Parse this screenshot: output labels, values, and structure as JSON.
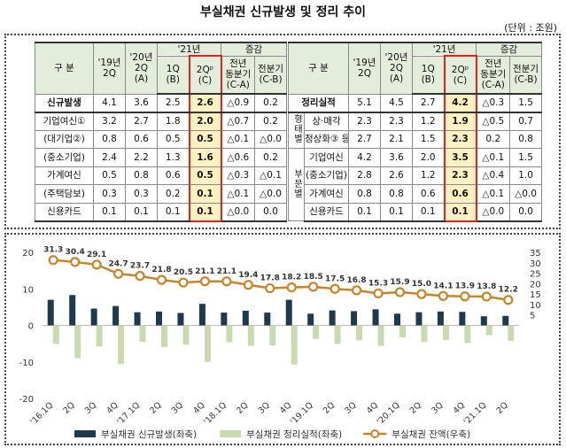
{
  "title": "부실채권 신규발생 및 정리 추이",
  "unit": "(단위 : 조원)",
  "left_table": {
    "corner": "구 분",
    "groups": [
      "'21년",
      "증감"
    ],
    "columns": [
      [
        "'19년",
        "2Q"
      ],
      [
        "'20년",
        "2Q",
        "(A)"
      ],
      [
        "1Q",
        "(B)"
      ],
      [
        "2Qᵖ",
        "(C)"
      ],
      [
        "전년",
        "동분기",
        "(C-A)"
      ],
      [
        "전분기",
        "(C-B)"
      ]
    ],
    "rows": [
      {
        "label": "신규발생",
        "values": [
          "4.1",
          "3.6",
          "2.5",
          "2.6",
          "△0.9",
          "0.2"
        ]
      },
      {
        "label": "기업여신①",
        "values": [
          "3.2",
          "2.7",
          "1.8",
          "2.0",
          "△0.7",
          "0.2"
        ]
      },
      {
        "label": "(대기업②)",
        "values": [
          "0.8",
          "0.6",
          "0.5",
          "0.5",
          "△0.1",
          "△0.0"
        ]
      },
      {
        "label": "(중소기업)",
        "values": [
          "2.4",
          "2.2",
          "1.3",
          "1.6",
          "△0.6",
          "0.2"
        ]
      },
      {
        "label": "가계여신",
        "values": [
          "0.5",
          "0.8",
          "0.6",
          "0.5",
          "△0.3",
          "△0.1"
        ]
      },
      {
        "label": "(주택담보)",
        "values": [
          "0.3",
          "0.3",
          "0.2",
          "0.1",
          "△0.1",
          "△0.0"
        ]
      },
      {
        "label": "신용카드",
        "values": [
          "0.1",
          "0.1",
          "0.1",
          "0.1",
          "△0.0",
          "0.0"
        ]
      }
    ]
  },
  "right_table": {
    "corner": "구 분",
    "groups": [
      "'21년",
      "증감"
    ],
    "columns": [
      [
        "'19년",
        "2Q"
      ],
      [
        "'20년",
        "2Q",
        "(A)"
      ],
      [
        "1Q",
        "(B)"
      ],
      [
        "2Qᵖ",
        "(C)"
      ],
      [
        "전년",
        "동분기",
        "(C-A)"
      ],
      [
        "전분기",
        "(C-B)"
      ]
    ],
    "rows": [
      {
        "label": "정리실적",
        "values": [
          "5.1",
          "4.5",
          "2.7",
          "4.2",
          "△0.3",
          "1.5"
        ]
      },
      {
        "group": "형태별",
        "rows": [
          {
            "label": "상·매각",
            "values": [
              "2.3",
              "2.3",
              "1.2",
              "1.9",
              "△0.5",
              "0.7"
            ]
          },
          {
            "label": "정상화③ 등",
            "values": [
              "2.7",
              "2.1",
              "1.5",
              "2.3",
              "0.2",
              "0.8"
            ]
          }
        ]
      },
      {
        "group": "부문별",
        "rows": [
          {
            "label": "기업여신",
            "values": [
              "4.2",
              "3.6",
              "2.0",
              "3.5",
              "△0.1",
              "1.5"
            ]
          },
          {
            "label": "(중소기업)",
            "values": [
              "2.8",
              "2.6",
              "1.2",
              "2.3",
              "△0.4",
              "1.0"
            ]
          },
          {
            "label": "가계여신",
            "values": [
              "0.8",
              "0.8",
              "0.6",
              "0.6",
              "△0.1",
              "△0.0"
            ]
          },
          {
            "label": "신용카드",
            "values": [
              "0.1",
              "0.1",
              "0.1",
              "0.1",
              "△0.0",
              "0.0"
            ]
          }
        ]
      }
    ]
  },
  "chart_data": {
    "type": "bar",
    "categories": [
      "'16.1Q",
      "2Q",
      "3Q",
      "4Q",
      "'17.1Q",
      "2Q",
      "3Q",
      "4Q",
      "'18.1Q",
      "2Q",
      "3Q",
      "4Q",
      "'19.1Q",
      "2Q",
      "3Q",
      "4Q",
      "'20.1Q",
      "2Q",
      "3Q",
      "4Q",
      "'21.1Q",
      "2Q"
    ],
    "series": [
      {
        "name": "부실채권 신규발생(좌축)",
        "type": "bar",
        "color": "#1f3a4c",
        "values": [
          7.0,
          8.3,
          4.6,
          5.3,
          3.6,
          3.8,
          3.4,
          5.9,
          3.5,
          4.0,
          3.5,
          7.0,
          3.2,
          4.1,
          3.9,
          4.4,
          3.2,
          3.6,
          3.8,
          3.7,
          2.5,
          2.6
        ]
      },
      {
        "name": "부실채권 정리실적(좌축)",
        "type": "bar",
        "color": "#c9dab1",
        "values": [
          -5.1,
          -9.0,
          -5.8,
          -10.5,
          -4.5,
          -5.9,
          -5.3,
          -10.0,
          -4.6,
          -5.6,
          -5.5,
          -10.7,
          -3.7,
          -5.1,
          -4.1,
          -5.6,
          -3.3,
          -4.5,
          -4.0,
          -4.8,
          -2.7,
          -4.2
        ]
      },
      {
        "name": "부실채권 잔액(우축)",
        "type": "line",
        "axis": "y2",
        "color": "#c5862b",
        "values": [
          31.3,
          30.4,
          29.1,
          24.7,
          23.7,
          21.8,
          20.5,
          21.1,
          21.1,
          19.4,
          17.8,
          18.2,
          18.5,
          17.5,
          16.8,
          15.3,
          15.9,
          15.0,
          14.1,
          13.9,
          13.8,
          12.2
        ],
        "value_labels": [
          "31.3",
          "30.4",
          "29.1",
          "24.7",
          "23.7",
          "21.8",
          "20.5",
          "21.1",
          "21.1",
          "19.4",
          "17.8",
          "18.2",
          "18.5",
          "17.5",
          "16.8",
          "15.3",
          "15.9",
          "15.0",
          "14.1",
          "13.9",
          "13.8",
          "12.2"
        ]
      }
    ],
    "ylim": [
      -20,
      20
    ],
    "yticks": [
      -20,
      -10,
      0,
      10,
      20
    ],
    "y2lim": [
      -35,
      35
    ],
    "y2ticks": [
      5,
      10,
      15,
      20,
      25,
      30,
      35
    ],
    "grid": false,
    "legend": "bottom"
  }
}
